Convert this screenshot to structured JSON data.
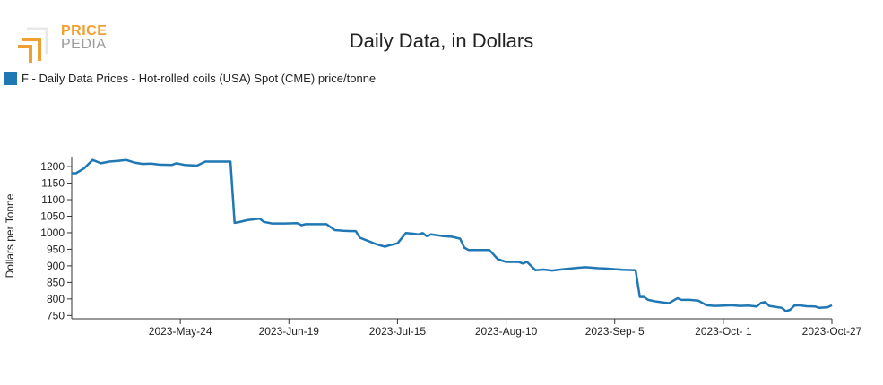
{
  "logo": {
    "line1": "PRICE",
    "line2": "PEDIA"
  },
  "colors": {
    "series": "#1f77b4",
    "logo_orange": "#f0a030",
    "logo_gray": "#9a9a9a"
  },
  "chart_data": {
    "type": "line",
    "title": "Daily Data, in Dollars",
    "xlabel": "",
    "ylabel": "Dollars per Tonne",
    "ylim": [
      740,
      1230
    ],
    "yticks": [
      750,
      800,
      850,
      900,
      950,
      1000,
      1050,
      1100,
      1150,
      1200
    ],
    "xlim": [
      "2023-04-28",
      "2023-10-27"
    ],
    "xticks": [
      {
        "date": "2023-05-24",
        "label": "2023-May-24"
      },
      {
        "date": "2023-06-19",
        "label": "2023-Jun-19"
      },
      {
        "date": "2023-07-15",
        "label": "2023-Jul-15"
      },
      {
        "date": "2023-08-10",
        "label": "2023-Aug-10"
      },
      {
        "date": "2023-09-05",
        "label": "2023-Sep- 5"
      },
      {
        "date": "2023-10-01",
        "label": "2023-Oct- 1"
      },
      {
        "date": "2023-10-27",
        "label": "2023-Oct-27"
      }
    ],
    "grid": false,
    "legend_position": "top-left",
    "series": [
      {
        "name": "F - Daily Data Prices - Hot-rolled coils (USA) Spot (CME) price/tonne",
        "points": [
          [
            "2023-04-28",
            1180
          ],
          [
            "2023-04-29",
            1180
          ],
          [
            "2023-05-01",
            1195
          ],
          [
            "2023-05-03",
            1220
          ],
          [
            "2023-05-05",
            1210
          ],
          [
            "2023-05-07",
            1215
          ],
          [
            "2023-05-09",
            1217
          ],
          [
            "2023-05-11",
            1220
          ],
          [
            "2023-05-13",
            1212
          ],
          [
            "2023-05-15",
            1208
          ],
          [
            "2023-05-17",
            1209
          ],
          [
            "2023-05-19",
            1206
          ],
          [
            "2023-05-22",
            1205
          ],
          [
            "2023-05-23",
            1210
          ],
          [
            "2023-05-25",
            1205
          ],
          [
            "2023-05-28",
            1203
          ],
          [
            "2023-05-30",
            1215
          ],
          [
            "2023-06-01",
            1215
          ],
          [
            "2023-06-03",
            1215
          ],
          [
            "2023-06-05",
            1215
          ],
          [
            "2023-06-06",
            1030
          ],
          [
            "2023-06-07",
            1032
          ],
          [
            "2023-06-09",
            1038
          ],
          [
            "2023-06-12",
            1043
          ],
          [
            "2023-06-13",
            1033
          ],
          [
            "2023-06-15",
            1028
          ],
          [
            "2023-06-18",
            1028
          ],
          [
            "2023-06-21",
            1029
          ],
          [
            "2023-06-22",
            1023
          ],
          [
            "2023-06-23",
            1026
          ],
          [
            "2023-06-25",
            1026
          ],
          [
            "2023-06-28",
            1026
          ],
          [
            "2023-06-30",
            1008
          ],
          [
            "2023-07-02",
            1006
          ],
          [
            "2023-07-04",
            1005
          ],
          [
            "2023-07-05",
            1005
          ],
          [
            "2023-07-06",
            985
          ],
          [
            "2023-07-08",
            975
          ],
          [
            "2023-07-10",
            965
          ],
          [
            "2023-07-12",
            958
          ],
          [
            "2023-07-13",
            962
          ],
          [
            "2023-07-15",
            968
          ],
          [
            "2023-07-17",
            999
          ],
          [
            "2023-07-19",
            997
          ],
          [
            "2023-07-20",
            995
          ],
          [
            "2023-07-21",
            999
          ],
          [
            "2023-07-22",
            990
          ],
          [
            "2023-07-23",
            995
          ],
          [
            "2023-07-26",
            990
          ],
          [
            "2023-07-28",
            988
          ],
          [
            "2023-07-30",
            982
          ],
          [
            "2023-07-31",
            955
          ],
          [
            "2023-08-01",
            948
          ],
          [
            "2023-08-04",
            948
          ],
          [
            "2023-08-06",
            948
          ],
          [
            "2023-08-08",
            920
          ],
          [
            "2023-08-10",
            912
          ],
          [
            "2023-08-13",
            912
          ],
          [
            "2023-08-14",
            907
          ],
          [
            "2023-08-15",
            912
          ],
          [
            "2023-08-17",
            887
          ],
          [
            "2023-08-19",
            889
          ],
          [
            "2023-08-21",
            886
          ],
          [
            "2023-08-23",
            889
          ],
          [
            "2023-08-27",
            894
          ],
          [
            "2023-08-29",
            896
          ],
          [
            "2023-09-01",
            893
          ],
          [
            "2023-09-03",
            892
          ],
          [
            "2023-09-05",
            890
          ],
          [
            "2023-09-07",
            888
          ],
          [
            "2023-09-10",
            887
          ],
          [
            "2023-09-11",
            806
          ],
          [
            "2023-09-12",
            806
          ],
          [
            "2023-09-13",
            797
          ],
          [
            "2023-09-15",
            792
          ],
          [
            "2023-09-18",
            787
          ],
          [
            "2023-09-20",
            802
          ],
          [
            "2023-09-21",
            797
          ],
          [
            "2023-09-23",
            797
          ],
          [
            "2023-09-25",
            795
          ],
          [
            "2023-09-27",
            781
          ],
          [
            "2023-09-29",
            779
          ],
          [
            "2023-10-01",
            780
          ],
          [
            "2023-10-03",
            781
          ],
          [
            "2023-10-05",
            779
          ],
          [
            "2023-10-07",
            780
          ],
          [
            "2023-10-09",
            777
          ],
          [
            "2023-10-10",
            788
          ],
          [
            "2023-10-11",
            791
          ],
          [
            "2023-10-12",
            779
          ],
          [
            "2023-10-15",
            773
          ],
          [
            "2023-10-16",
            763
          ],
          [
            "2023-10-17",
            767
          ],
          [
            "2023-10-18",
            780
          ],
          [
            "2023-10-19",
            781
          ],
          [
            "2023-10-21",
            778
          ],
          [
            "2023-10-23",
            777
          ],
          [
            "2023-10-24",
            773
          ],
          [
            "2023-10-26",
            775
          ],
          [
            "2023-10-27",
            781
          ]
        ]
      }
    ]
  }
}
